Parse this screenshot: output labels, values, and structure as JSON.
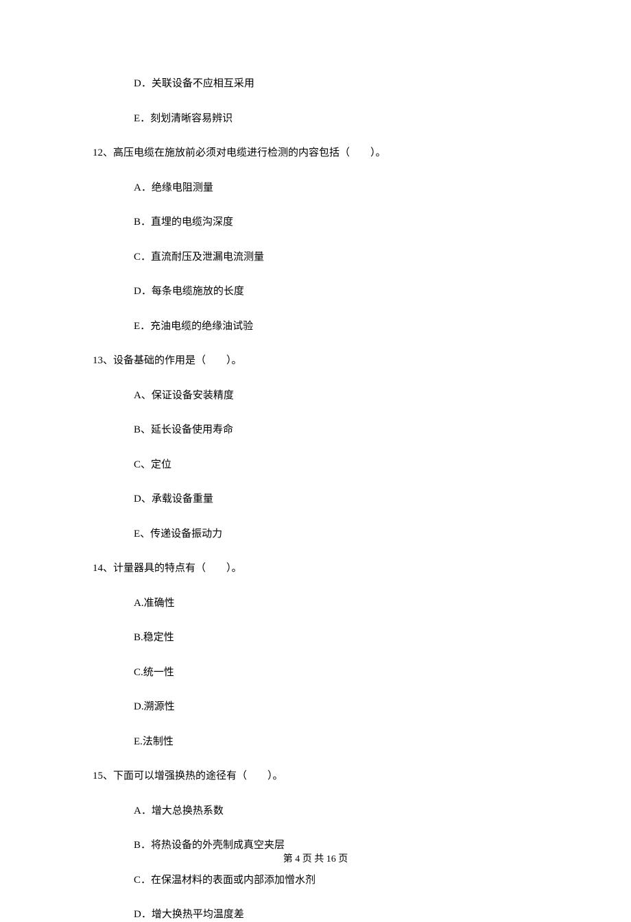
{
  "content": {
    "q11_options": {
      "D": "D．关联设备不应相互采用",
      "E": "E．刻划清晰容易辨识"
    },
    "q12": {
      "stem": "12、高压电缆在施放前必须对电缆进行检测的内容包括（　　）。",
      "options": {
        "A": "A．绝缘电阻测量",
        "B": "B．直埋的电缆沟深度",
        "C": "C．直流耐压及泄漏电流测量",
        "D": "D．每条电缆施放的长度",
        "E": "E．充油电缆的绝缘油试验"
      }
    },
    "q13": {
      "stem": "13、设备基础的作用是（　　）。",
      "options": {
        "A": "A、保证设备安装精度",
        "B": "B、延长设备使用寿命",
        "C": "C、定位",
        "D": "D、承载设备重量",
        "E": "E、传递设备振动力"
      }
    },
    "q14": {
      "stem": "14、计量器具的特点有（　　）。",
      "options": {
        "A": "A.准确性",
        "B": "B.稳定性",
        "C": "C.统一性",
        "D": "D.溯源性",
        "E": "E.法制性"
      }
    },
    "q15": {
      "stem": "15、下面可以增强换热的途径有（　　）。",
      "options": {
        "A": "A．增大总换热系数",
        "B": "B．将热设备的外壳制成真空夹层",
        "C": "C．在保温材料的表面或内部添加憎水剂",
        "D": "D．增大换热平均温度差"
      }
    }
  },
  "footer": "第 4 页 共 16 页"
}
